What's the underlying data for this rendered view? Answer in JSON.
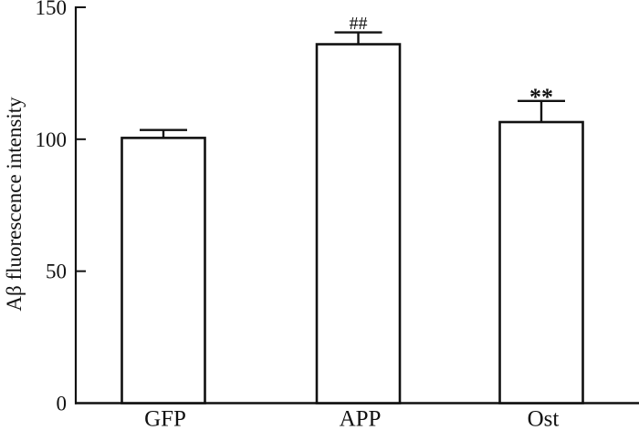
{
  "figure": {
    "background": "#ffffff",
    "axis_color": "#111111"
  },
  "chart_data": {
    "type": "bar",
    "title": "",
    "xlabel": "",
    "ylabel": "Aβ fluorescence intensity",
    "categories": [
      "GFP",
      "APP",
      "Ost"
    ],
    "values": [
      100.5,
      136,
      106.5
    ],
    "errors": [
      3,
      4.5,
      8
    ],
    "error_bar_direction": "upper-only",
    "annotations": [
      "",
      "##",
      "**"
    ],
    "yticks": [
      0,
      50,
      100,
      150
    ],
    "ylim": [
      0,
      150
    ],
    "bar_fill": "#ffffff",
    "bar_edge": "#111111",
    "grid": false,
    "legend": null
  }
}
